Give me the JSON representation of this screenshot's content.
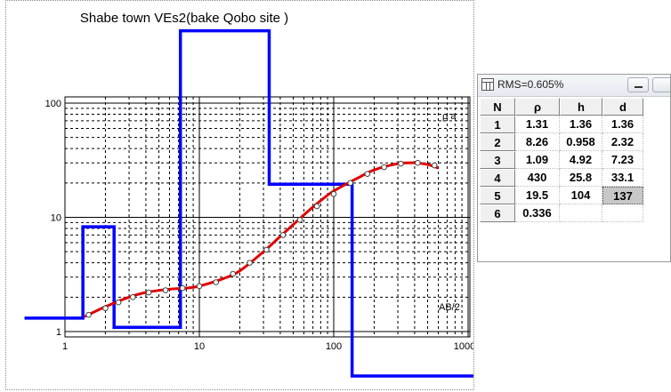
{
  "chart_data": {
    "type": "line",
    "title": "Shabe town VEs2(bake Qobo site )",
    "ylabel": "ρ a",
    "xlabel": "AB/2",
    "x_scale": "log",
    "y_scale": "log",
    "xlim": [
      1,
      1000
    ],
    "ylim": [
      1,
      100
    ],
    "x_ticks": [
      "1",
      "10",
      "100",
      "1000"
    ],
    "y_ticks": [
      "1",
      "10",
      "100"
    ],
    "grid": true,
    "series": [
      {
        "role": "layer-model",
        "color": "#0000ff",
        "steps": [
          {
            "rho": 1.31,
            "x_from": 0.5,
            "x_to": 1.36
          },
          {
            "rho": 8.26,
            "x_from": 1.36,
            "x_to": 2.32
          },
          {
            "rho": 1.09,
            "x_from": 2.32,
            "x_to": 7.23
          },
          {
            "rho": 430,
            "x_from": 7.23,
            "x_to": 33.1
          },
          {
            "rho": 19.5,
            "x_from": 33.1,
            "x_to": 137
          },
          {
            "rho": 0.336,
            "x_from": 137,
            "x_to": 2000
          }
        ]
      },
      {
        "role": "fitted-curve",
        "color": "#e00000",
        "x": [
          1.4,
          2,
          3,
          4,
          6,
          8,
          10,
          15,
          20,
          30,
          40,
          60,
          80,
          100,
          150,
          200,
          300,
          400,
          500,
          600
        ],
        "y": [
          1.35,
          1.65,
          2.0,
          2.2,
          2.35,
          2.4,
          2.5,
          2.9,
          3.4,
          5.0,
          6.8,
          10.5,
          14,
          17,
          22,
          26,
          29.5,
          30,
          29,
          27
        ]
      },
      {
        "role": "field-measurements",
        "color": "#444444",
        "x": [
          1.5,
          2,
          2.5,
          3.2,
          4.2,
          5.6,
          7.5,
          10,
          13.3,
          17.8,
          23.7,
          31.6,
          42,
          56,
          75,
          100,
          133,
          178,
          237,
          316,
          422,
          562
        ],
        "y": [
          1.4,
          1.6,
          1.8,
          2.0,
          2.2,
          2.3,
          2.4,
          2.5,
          2.7,
          3.2,
          4.0,
          5.2,
          7.0,
          9.5,
          12.5,
          16,
          20,
          24,
          27.5,
          29.5,
          30,
          28.5
        ]
      }
    ]
  },
  "table_window": {
    "rms_label": "RMS=0.605%",
    "headers": [
      "N",
      "ρ",
      "h",
      "d"
    ],
    "rows": [
      {
        "n": "1",
        "rho": "1.31",
        "h": "1.36",
        "d": "1.36"
      },
      {
        "n": "2",
        "rho": "8.26",
        "h": "0.958",
        "d": "2.32"
      },
      {
        "n": "3",
        "rho": "1.09",
        "h": "4.92",
        "d": "7.23"
      },
      {
        "n": "4",
        "rho": "430",
        "h": "25.8",
        "d": "33.1"
      },
      {
        "n": "5",
        "rho": "19.5",
        "h": "104",
        "d": "137"
      },
      {
        "n": "6",
        "rho": "0.336",
        "h": "",
        "d": ""
      }
    ],
    "selected_row": 4,
    "selected_column": "d"
  }
}
